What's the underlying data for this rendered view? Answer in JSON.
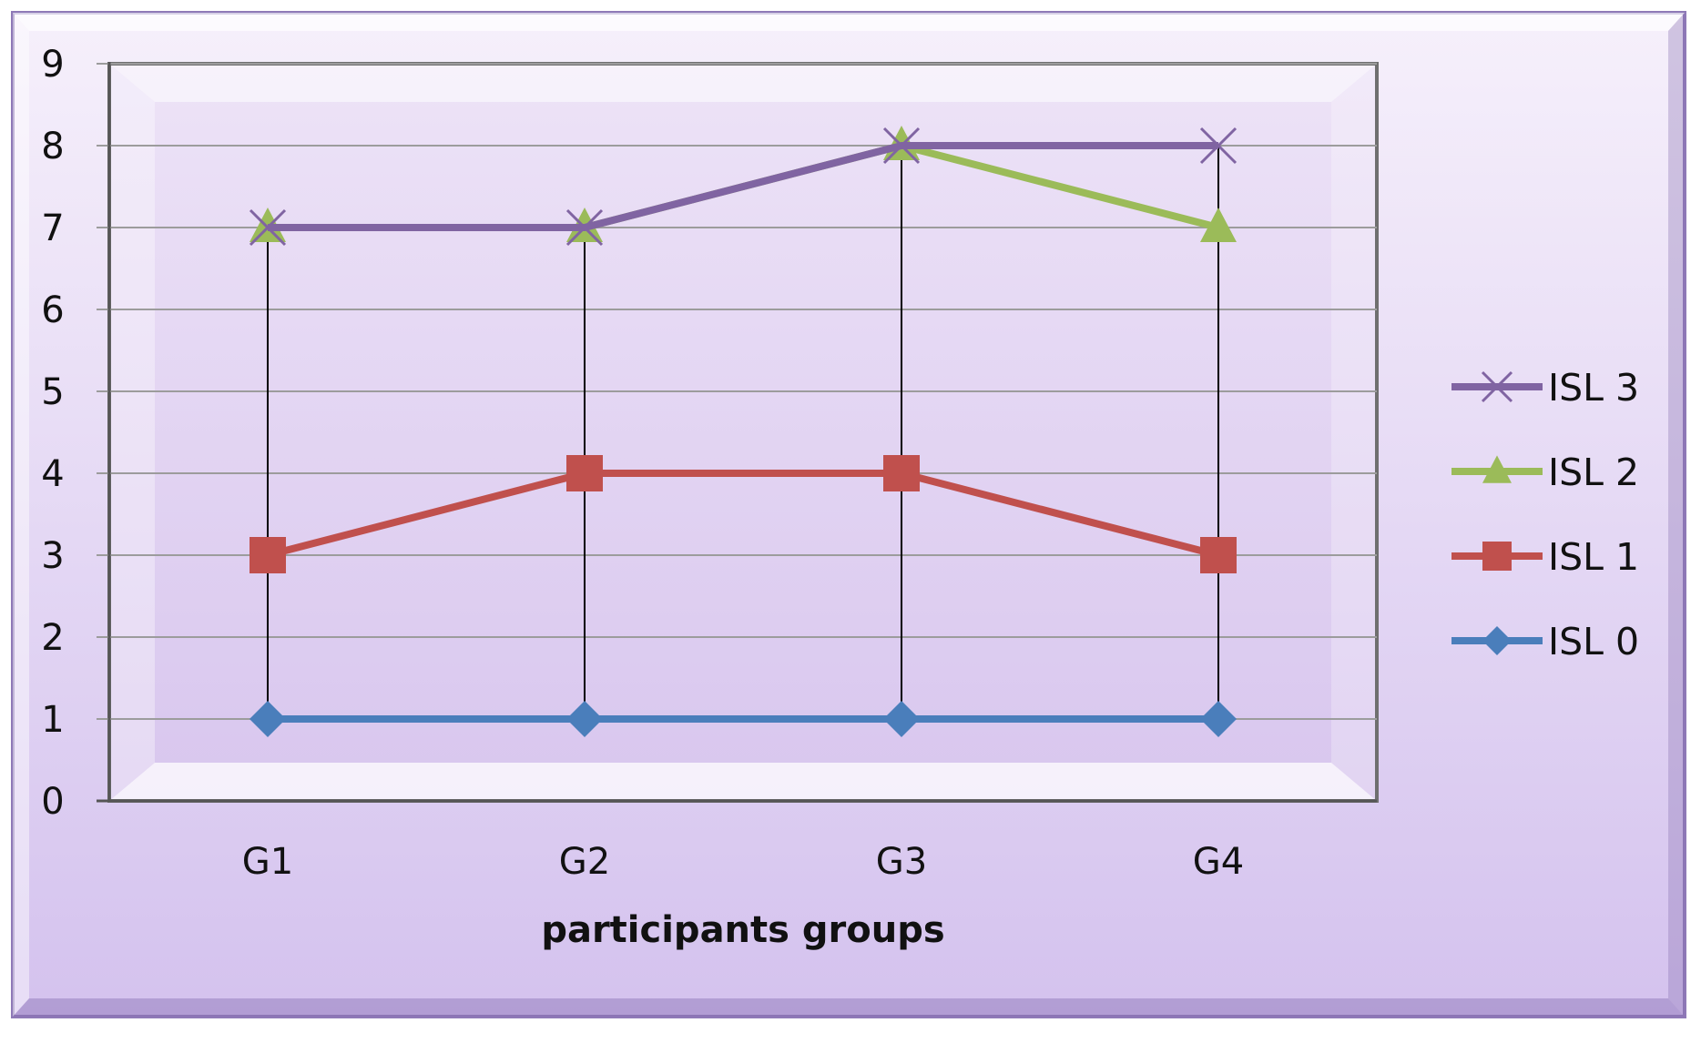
{
  "colors": {
    "panel_fill_top": "#f6f0fb",
    "panel_fill_bottom": "#d4c2ee",
    "panel_border": "#8e79b7",
    "plot_fill_top": "#ede3f7",
    "plot_fill_bottom": "#d8c6ee",
    "grid": "#9c9c9c",
    "drop_line": "#000000"
  },
  "chart_data": {
    "type": "line",
    "title": "",
    "xlabel": "participants groups",
    "ylabel": "",
    "categories": [
      "G1",
      "G2",
      "G3",
      "G4"
    ],
    "ylim": [
      0,
      9
    ],
    "yticks": [
      0,
      1,
      2,
      3,
      4,
      5,
      6,
      7,
      8,
      9
    ],
    "grid": true,
    "drop_lines": true,
    "legend_position": "right",
    "series": [
      {
        "name": "ISL 0",
        "values": [
          1,
          1,
          1,
          1
        ],
        "color": "#4a7ebb",
        "marker": "diamond"
      },
      {
        "name": "ISL 1",
        "values": [
          3,
          4,
          4,
          3
        ],
        "color": "#c0504d",
        "marker": "square"
      },
      {
        "name": "ISL 2",
        "values": [
          7,
          7,
          8,
          7
        ],
        "color": "#9bbb59",
        "marker": "triangle"
      },
      {
        "name": "ISL 3",
        "values": [
          7,
          7,
          8,
          8
        ],
        "color": "#8064a2",
        "marker": "x"
      }
    ],
    "legend_order": [
      "ISL 3",
      "ISL 2",
      "ISL 1",
      "ISL 0"
    ]
  }
}
